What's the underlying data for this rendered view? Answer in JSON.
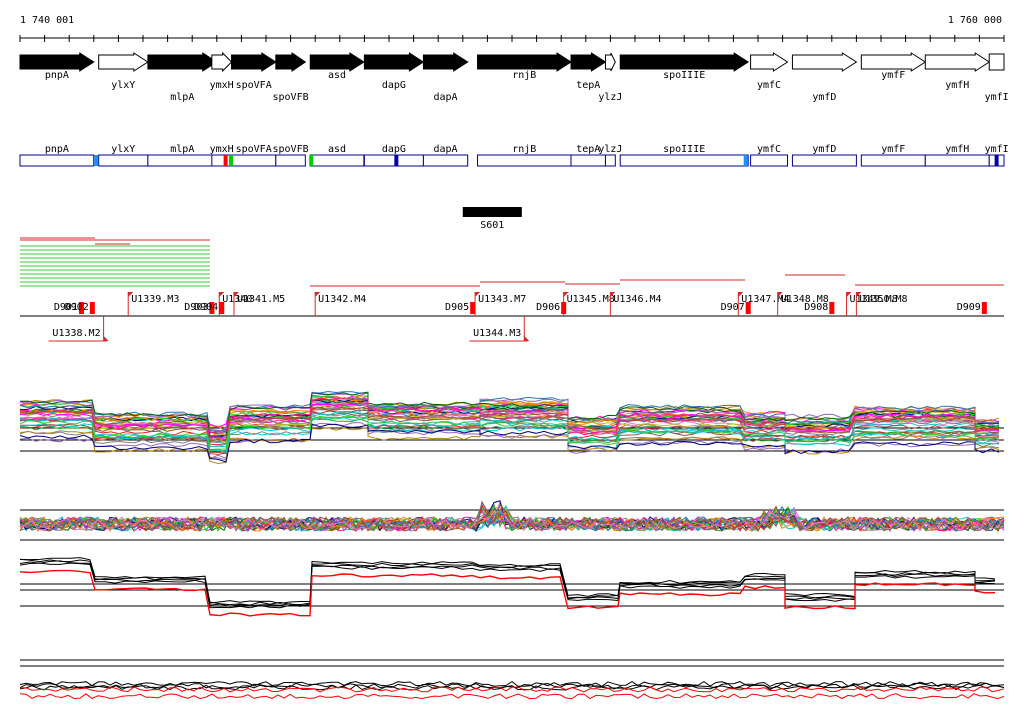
{
  "coordinates": {
    "start_label": "1 740 001",
    "end_label": "1 760 000",
    "start": 1740001,
    "end": 1760000
  },
  "genes": [
    {
      "name": "pnpA",
      "start": 1740001,
      "end": 1741500,
      "strand": "+",
      "filled": true,
      "label_row": 0
    },
    {
      "name": "ylxY",
      "start": 1741600,
      "end": 1742600,
      "strand": "+",
      "filled": false,
      "label_row": 1
    },
    {
      "name": "mlpA",
      "start": 1742600,
      "end": 1744000,
      "strand": "+",
      "filled": true,
      "label_row": 2
    },
    {
      "name": "ymxH",
      "start": 1743900,
      "end": 1744300,
      "strand": "+",
      "filled": false,
      "label_row": 1
    },
    {
      "name": "spoVFA",
      "start": 1744300,
      "end": 1745200,
      "strand": "+",
      "filled": true,
      "label_row": 1
    },
    {
      "name": "spoVFB",
      "start": 1745200,
      "end": 1745800,
      "strand": "+",
      "filled": true,
      "label_row": 2
    },
    {
      "name": "asd",
      "start": 1745900,
      "end": 1746990,
      "strand": "+",
      "filled": true,
      "label_row": 0
    },
    {
      "name": "dapG",
      "start": 1747000,
      "end": 1748200,
      "strand": "+",
      "filled": true,
      "label_row": 1
    },
    {
      "name": "dapA",
      "start": 1748200,
      "end": 1749100,
      "strand": "+",
      "filled": true,
      "label_row": 2
    },
    {
      "name": "rnjB",
      "start": 1749300,
      "end": 1751200,
      "strand": "+",
      "filled": true,
      "label_row": 0
    },
    {
      "name": "tepA",
      "start": 1751200,
      "end": 1751900,
      "strand": "+",
      "filled": true,
      "label_row": 1
    },
    {
      "name": "ylzJ",
      "start": 1751900,
      "end": 1752100,
      "strand": "+",
      "filled": false,
      "label_row": 2
    },
    {
      "name": "spoIIIE",
      "start": 1752200,
      "end": 1754800,
      "strand": "+",
      "filled": true,
      "label_row": 0
    },
    {
      "name": "ymfC",
      "start": 1754850,
      "end": 1755600,
      "strand": "+",
      "filled": false,
      "label_row": 1
    },
    {
      "name": "ymfD",
      "start": 1755700,
      "end": 1757000,
      "strand": "+",
      "filled": false,
      "label_row": 2
    },
    {
      "name": "ymfF",
      "start": 1757100,
      "end": 1758400,
      "strand": "+",
      "filled": false,
      "label_row": 0
    },
    {
      "name": "ymfH",
      "start": 1758400,
      "end": 1759700,
      "strand": "+",
      "filled": false,
      "label_row": 1
    },
    {
      "name": "ymfI",
      "start": 1759700,
      "end": 1760000,
      "strand": "+",
      "filled": false,
      "label_row": 2,
      "box": true
    }
  ],
  "domain_marks": [
    {
      "pos": 1741550,
      "color": "#1e90ff"
    },
    {
      "pos": 1744180,
      "color": "#ff0000"
    },
    {
      "pos": 1744290,
      "color": "#00cc00"
    },
    {
      "pos": 1745920,
      "color": "#00cc00"
    },
    {
      "pos": 1747650,
      "color": "#0000aa"
    },
    {
      "pos": 1754750,
      "color": "#1e90ff"
    },
    {
      "pos": 1759850,
      "color": "#0000aa"
    }
  ],
  "segment": {
    "name": "S601",
    "start": 1749000,
    "end": 1750200
  },
  "transcripts": [
    {
      "name": "U1339.M3",
      "pos": 1742200,
      "row": 0
    },
    {
      "name": "U1340",
      "pos": 1744050,
      "row": 0
    },
    {
      "name": "U1341.M5",
      "pos": 1744350,
      "row": 0
    },
    {
      "name": "U1342.M4",
      "pos": 1746000,
      "row": 0
    },
    {
      "name": "U1343.M7",
      "pos": 1749250,
      "row": 0
    },
    {
      "name": "U1345.M8",
      "pos": 1751050,
      "row": 0
    },
    {
      "name": "U1346.M4",
      "pos": 1752000,
      "row": 0
    },
    {
      "name": "U1347.M4",
      "pos": 1754600,
      "row": 0
    },
    {
      "name": "U1348.M8",
      "pos": 1755400,
      "row": 0
    },
    {
      "name": "U1349.M8",
      "pos": 1756800,
      "row": 0
    },
    {
      "name": "U1350.M8",
      "pos": 1757000,
      "row": 0
    },
    {
      "name": "U1338.M2",
      "pos": 1741700,
      "row": 1
    },
    {
      "name": "U1344.M3",
      "pos": 1750250,
      "row": 1
    }
  ],
  "downshifts": [
    {
      "name": "D901",
      "pos": 1741200
    },
    {
      "name": "D902",
      "pos": 1741420
    },
    {
      "name": "D903",
      "pos": 1743850
    },
    {
      "name": "D904",
      "pos": 1744050
    },
    {
      "name": "D905",
      "pos": 1749150
    },
    {
      "name": "D906",
      "pos": 1751000
    },
    {
      "name": "D907",
      "pos": 1754750
    },
    {
      "name": "D908",
      "pos": 1756450
    },
    {
      "name": "D909",
      "pos": 1759550
    }
  ]
}
